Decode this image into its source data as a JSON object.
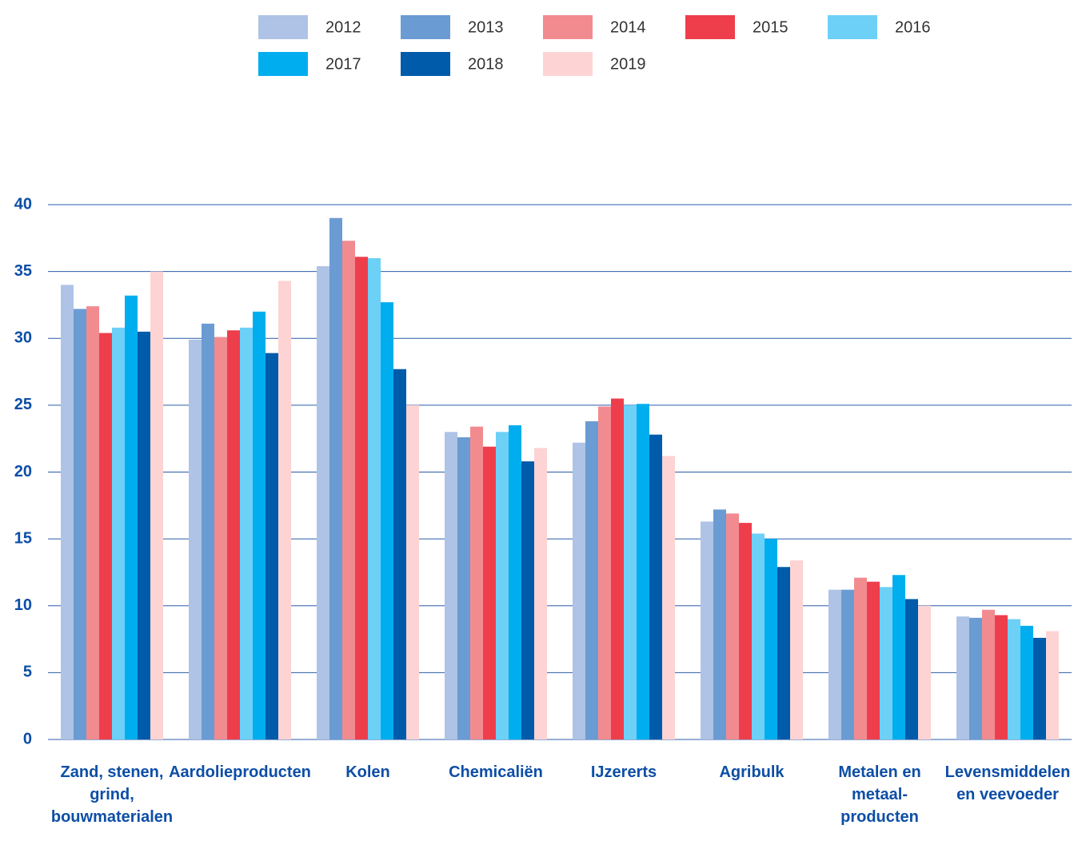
{
  "chart_data": {
    "type": "bar",
    "categories": [
      "Zand, stenen, grind, bouwmaterialen",
      "Aardolieproducten",
      "Kolen",
      "Chemicaliën",
      "IJzererts",
      "Agribulk",
      "Metalen en metaal-producten",
      "Levensmiddelen en veevoeder"
    ],
    "series": [
      {
        "name": "2012",
        "color": "#aec3e6",
        "values": [
          34.0,
          29.9,
          35.4,
          23.0,
          22.2,
          16.3,
          11.2,
          9.2
        ]
      },
      {
        "name": "2013",
        "color": "#6a9bd3",
        "values": [
          32.2,
          31.1,
          39.0,
          22.6,
          23.8,
          17.2,
          11.2,
          9.1
        ]
      },
      {
        "name": "2014",
        "color": "#f28b90",
        "values": [
          32.4,
          30.1,
          37.3,
          23.4,
          24.9,
          16.9,
          12.1,
          9.7
        ]
      },
      {
        "name": "2015",
        "color": "#ee3e4c",
        "values": [
          30.4,
          30.6,
          36.1,
          21.9,
          25.5,
          16.2,
          11.8,
          9.3
        ]
      },
      {
        "name": "2016",
        "color": "#6dd0f6",
        "values": [
          30.8,
          30.8,
          36.0,
          23.0,
          25.0,
          15.4,
          11.4,
          9.0
        ]
      },
      {
        "name": "2017",
        "color": "#00aeef",
        "values": [
          33.2,
          32.0,
          32.7,
          23.5,
          25.1,
          15.0,
          12.3,
          8.5
        ]
      },
      {
        "name": "2018",
        "color": "#005bab",
        "values": [
          30.5,
          28.9,
          27.7,
          20.8,
          22.8,
          12.9,
          10.5,
          7.6
        ]
      },
      {
        "name": "2019",
        "color": "#fdd4d3",
        "values": [
          35.0,
          34.3,
          25.0,
          21.8,
          21.2,
          13.4,
          10.0,
          8.1
        ]
      }
    ],
    "ylim": [
      0,
      40
    ],
    "yticks": [
      0,
      5,
      10,
      15,
      20,
      25,
      30,
      35,
      40
    ],
    "grid": true,
    "legend": "top"
  }
}
